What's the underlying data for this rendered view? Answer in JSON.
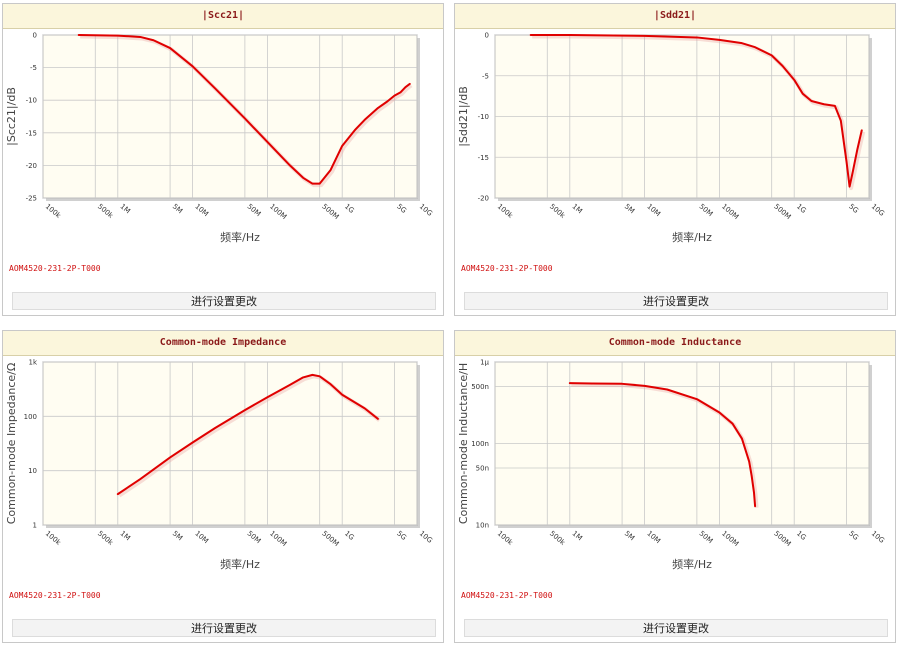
{
  "panels": [
    {
      "title": "|Scc21|",
      "part_number": "AOM4520-231-2P-T000",
      "button_label": "进行设置更改"
    },
    {
      "title": "|Sdd21|",
      "part_number": "AOM4520-231-2P-T000",
      "button_label": "进行设置更改"
    },
    {
      "title": "Common-mode Impedance",
      "part_number": "AOM4520-231-2P-T000",
      "button_label": "进行设置更改"
    },
    {
      "title": "Common-mode Inductance",
      "part_number": "AOM4520-231-2P-T000",
      "button_label": "进行设置更改"
    }
  ],
  "chart_data": [
    {
      "type": "line",
      "title": "|Scc21|",
      "xlabel": "频率/Hz",
      "ylabel": "|Scc21|/dB",
      "xscale": "log",
      "xlim": [
        100000,
        10000000000
      ],
      "ylim": [
        -25,
        0
      ],
      "x_ticks": [
        {
          "v": 100000,
          "label": "100k"
        },
        {
          "v": 500000,
          "label": "500k"
        },
        {
          "v": 1000000,
          "label": "1M"
        },
        {
          "v": 5000000,
          "label": "5M"
        },
        {
          "v": 10000000,
          "label": "10M"
        },
        {
          "v": 50000000,
          "label": "50M"
        },
        {
          "v": 100000000,
          "label": "100M"
        },
        {
          "v": 500000000,
          "label": "500M"
        },
        {
          "v": 1000000000,
          "label": "1G"
        },
        {
          "v": 5000000000,
          "label": "5G"
        },
        {
          "v": 10000000000,
          "label": "10G"
        }
      ],
      "y_ticks": [
        {
          "v": 0,
          "label": "0"
        },
        {
          "v": -5,
          "label": "-5"
        },
        {
          "v": -10,
          "label": "-10"
        },
        {
          "v": -15,
          "label": "-15"
        },
        {
          "v": -20,
          "label": "-20"
        },
        {
          "v": -25,
          "label": "-25"
        }
      ],
      "grid": true,
      "line_color": "#e00000",
      "series": [
        {
          "x": [
            300000,
            1000000,
            2000000,
            3000000,
            5000000,
            10000000,
            20000000,
            50000000,
            100000000,
            200000000,
            300000000,
            400000000,
            500000000,
            700000000,
            1000000000,
            1500000000,
            2000000000,
            3000000000,
            4000000000,
            5000000000,
            6000000000,
            7000000000,
            8000000000
          ],
          "y": [
            0,
            -0.1,
            -0.3,
            -0.8,
            -2.0,
            -4.8,
            -8.2,
            -12.8,
            -16.4,
            -20.0,
            -21.9,
            -22.8,
            -22.8,
            -20.7,
            -17.0,
            -14.5,
            -13.0,
            -11.2,
            -10.2,
            -9.3,
            -8.8,
            -8.0,
            -7.5
          ]
        }
      ]
    },
    {
      "type": "line",
      "title": "|Sdd21|",
      "xlabel": "频率/Hz",
      "ylabel": "|Sdd21|/dB",
      "xscale": "log",
      "xlim": [
        100000,
        10000000000
      ],
      "ylim": [
        -20,
        0
      ],
      "x_ticks": [
        {
          "v": 100000,
          "label": "100k"
        },
        {
          "v": 500000,
          "label": "500k"
        },
        {
          "v": 1000000,
          "label": "1M"
        },
        {
          "v": 5000000,
          "label": "5M"
        },
        {
          "v": 10000000,
          "label": "10M"
        },
        {
          "v": 50000000,
          "label": "50M"
        },
        {
          "v": 100000000,
          "label": "100M"
        },
        {
          "v": 500000000,
          "label": "500M"
        },
        {
          "v": 1000000000,
          "label": "1G"
        },
        {
          "v": 5000000000,
          "label": "5G"
        },
        {
          "v": 10000000000,
          "label": "10G"
        }
      ],
      "y_ticks": [
        {
          "v": 0,
          "label": "0"
        },
        {
          "v": -5,
          "label": "-5"
        },
        {
          "v": -10,
          "label": "-10"
        },
        {
          "v": -15,
          "label": "-15"
        },
        {
          "v": -20,
          "label": "-20"
        }
      ],
      "grid": true,
      "line_color": "#e00000",
      "series": [
        {
          "x": [
            300000,
            1000000,
            10000000,
            50000000,
            100000000,
            200000000,
            300000000,
            500000000,
            700000000,
            1000000000,
            1300000000,
            1700000000,
            2500000000,
            3500000000,
            4200000000,
            5000000000,
            5500000000,
            6000000000,
            7000000000,
            8000000000
          ],
          "y": [
            0,
            0,
            -0.1,
            -0.3,
            -0.6,
            -1.0,
            -1.5,
            -2.5,
            -3.8,
            -5.5,
            -7.2,
            -8.1,
            -8.5,
            -8.7,
            -10.5,
            -15.5,
            -18.6,
            -17.0,
            -14.0,
            -11.7
          ]
        }
      ]
    },
    {
      "type": "line",
      "title": "Common-mode Impedance",
      "xlabel": "频率/Hz",
      "ylabel": "Common-mode Impedance/Ω",
      "xscale": "log",
      "yscale": "log",
      "xlim": [
        100000,
        10000000000
      ],
      "ylim": [
        1,
        1000
      ],
      "x_ticks": [
        {
          "v": 100000,
          "label": "100k"
        },
        {
          "v": 500000,
          "label": "500k"
        },
        {
          "v": 1000000,
          "label": "1M"
        },
        {
          "v": 5000000,
          "label": "5M"
        },
        {
          "v": 10000000,
          "label": "10M"
        },
        {
          "v": 50000000,
          "label": "50M"
        },
        {
          "v": 100000000,
          "label": "100M"
        },
        {
          "v": 500000000,
          "label": "500M"
        },
        {
          "v": 1000000000,
          "label": "1G"
        },
        {
          "v": 5000000000,
          "label": "5G"
        },
        {
          "v": 10000000000,
          "label": "10G"
        }
      ],
      "y_ticks": [
        {
          "v": 1,
          "label": "1"
        },
        {
          "v": 10,
          "label": "10"
        },
        {
          "v": 100,
          "label": "100"
        },
        {
          "v": 1000,
          "label": "1k"
        }
      ],
      "grid": true,
      "line_color": "#e00000",
      "series": [
        {
          "x": [
            1000000,
            2000000,
            5000000,
            10000000,
            20000000,
            50000000,
            100000000,
            200000000,
            300000000,
            400000000,
            500000000,
            700000000,
            1000000000,
            2000000000,
            3000000000
          ],
          "y": [
            3.7,
            7.0,
            17.5,
            33.0,
            61.0,
            130.0,
            225.0,
            380.0,
            520.0,
            580.0,
            545.0,
            390.0,
            250.0,
            140.0,
            90.0
          ]
        }
      ]
    },
    {
      "type": "line",
      "title": "Common-mode Inductance",
      "xlabel": "频率/Hz",
      "ylabel": "Common-mode Inductance/H",
      "xscale": "log",
      "yscale": "log",
      "xlim": [
        100000,
        10000000000
      ],
      "ylim": [
        1e-08,
        1e-06
      ],
      "x_ticks": [
        {
          "v": 100000,
          "label": "100k"
        },
        {
          "v": 500000,
          "label": "500k"
        },
        {
          "v": 1000000,
          "label": "1M"
        },
        {
          "v": 5000000,
          "label": "5M"
        },
        {
          "v": 10000000,
          "label": "10M"
        },
        {
          "v": 50000000,
          "label": "50M"
        },
        {
          "v": 100000000,
          "label": "100M"
        },
        {
          "v": 500000000,
          "label": "500M"
        },
        {
          "v": 1000000000,
          "label": "1G"
        },
        {
          "v": 5000000000,
          "label": "5G"
        },
        {
          "v": 10000000000,
          "label": "10G"
        }
      ],
      "y_ticks": [
        {
          "v": 1e-08,
          "label": "10n"
        },
        {
          "v": 5e-08,
          "label": "50n"
        },
        {
          "v": 1e-07,
          "label": "100n"
        },
        {
          "v": 5e-07,
          "label": "500n"
        },
        {
          "v": 1e-06,
          "label": "1μ"
        }
      ],
      "grid": true,
      "line_color": "#e00000",
      "series": [
        {
          "x": [
            1000000,
            2000000,
            5000000,
            10000000,
            20000000,
            50000000,
            100000000,
            150000000,
            200000000,
            250000000,
            270000000,
            290000000,
            300000000
          ],
          "y": [
            5.5e-07,
            5.45e-07,
            5.4e-07,
            5.1e-07,
            4.6e-07,
            3.5e-07,
            2.4e-07,
            1.75e-07,
            1.15e-07,
            6e-08,
            4e-08,
            2.5e-08,
            1.7e-08
          ]
        }
      ]
    }
  ]
}
